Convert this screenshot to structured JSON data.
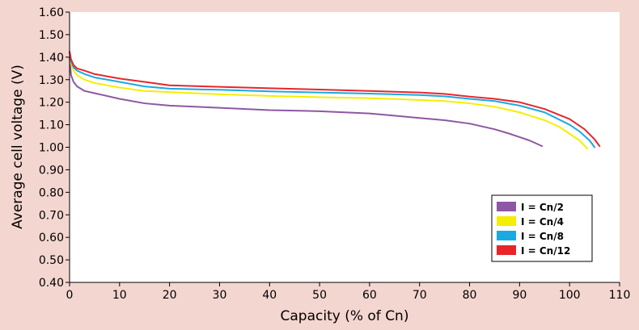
{
  "chart_data": {
    "type": "line",
    "title": "",
    "xlabel": "Capacity (% of Cn)",
    "ylabel": "Average cell voltage (V)",
    "xlim": [
      0,
      110
    ],
    "ylim": [
      0.4,
      1.6
    ],
    "x_ticks": [
      "0",
      "10",
      "20",
      "30",
      "40",
      "50",
      "60",
      "70",
      "80",
      "90",
      "100",
      "110"
    ],
    "y_ticks": [
      "0.40",
      "0.50",
      "0.60",
      "0.70",
      "0.80",
      "0.90",
      "1.00",
      "1.10",
      "1.20",
      "1.30",
      "1.40",
      "1.50",
      "1.60"
    ],
    "grid": false,
    "legend_position": "bottom-right",
    "background_color": "#f4d6d0",
    "plot_background": "#ffffff",
    "series": [
      {
        "name": "I = Cn/2",
        "color": "#8e57a3",
        "x": [
          0,
          0.3,
          0.8,
          1.5,
          3,
          5,
          10,
          15,
          20,
          30,
          40,
          50,
          60,
          65,
          70,
          75,
          80,
          85,
          88,
          90,
          92,
          94.5
        ],
        "y": [
          1.4,
          1.32,
          1.29,
          1.27,
          1.25,
          1.24,
          1.215,
          1.195,
          1.185,
          1.175,
          1.165,
          1.16,
          1.15,
          1.14,
          1.13,
          1.12,
          1.105,
          1.08,
          1.06,
          1.045,
          1.03,
          1.005
        ]
      },
      {
        "name": "I = Cn/4",
        "color": "#f5ee00",
        "x": [
          0,
          0.3,
          0.8,
          1.5,
          3,
          5,
          10,
          15,
          20,
          30,
          40,
          50,
          60,
          70,
          75,
          80,
          85,
          90,
          95,
          98,
          100,
          102,
          103.5
        ],
        "y": [
          1.41,
          1.37,
          1.34,
          1.32,
          1.3,
          1.285,
          1.265,
          1.25,
          1.245,
          1.235,
          1.228,
          1.222,
          1.218,
          1.21,
          1.205,
          1.195,
          1.18,
          1.155,
          1.12,
          1.09,
          1.06,
          1.03,
          0.995
        ]
      },
      {
        "name": "I = Cn/8",
        "color": "#1ba9e1",
        "x": [
          0,
          0.3,
          0.8,
          1.5,
          3,
          5,
          10,
          15,
          20,
          30,
          40,
          50,
          60,
          70,
          75,
          80,
          85,
          90,
          95,
          100,
          102,
          104,
          105
        ],
        "y": [
          1.42,
          1.38,
          1.355,
          1.34,
          1.325,
          1.31,
          1.29,
          1.27,
          1.26,
          1.255,
          1.248,
          1.243,
          1.238,
          1.232,
          1.226,
          1.215,
          1.205,
          1.185,
          1.155,
          1.1,
          1.07,
          1.03,
          1.0
        ]
      },
      {
        "name": "I = Cn/12",
        "color": "#e8252a",
        "x": [
          0,
          0.3,
          0.8,
          1.5,
          3,
          5,
          10,
          15,
          20,
          30,
          40,
          50,
          60,
          70,
          75,
          80,
          85,
          90,
          95,
          100,
          103,
          105,
          106
        ],
        "y": [
          1.425,
          1.39,
          1.365,
          1.35,
          1.34,
          1.325,
          1.305,
          1.29,
          1.275,
          1.268,
          1.262,
          1.256,
          1.25,
          1.243,
          1.237,
          1.225,
          1.215,
          1.2,
          1.17,
          1.125,
          1.08,
          1.035,
          1.005
        ]
      }
    ]
  }
}
